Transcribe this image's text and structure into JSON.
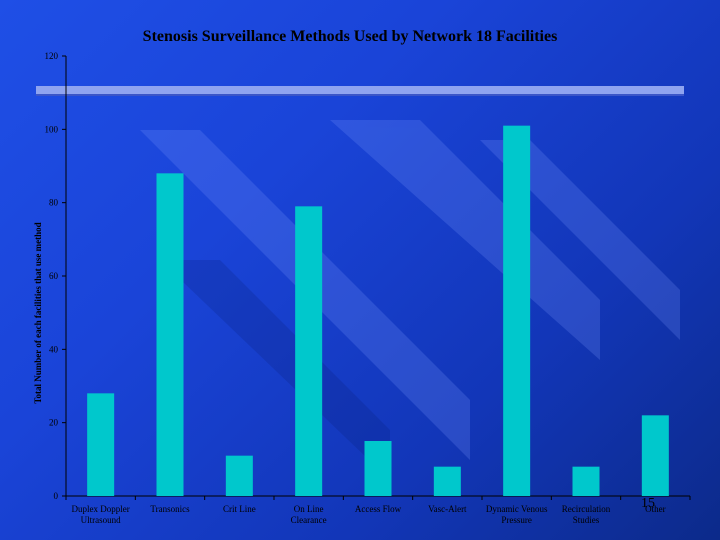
{
  "slide": {
    "title": "Stenosis Surveillance Methods Used by Network 18 Facilities",
    "slide_number": "15"
  },
  "colors": {
    "bar": "#00c8cc",
    "axis": "#000000",
    "band": "#8fa4f0"
  },
  "chart_data": {
    "type": "bar",
    "title": "Stenosis Surveillance Methods Used by Network 18 Facilities",
    "xlabel": "",
    "ylabel": "Total Number of each facilities that use method",
    "ylim": [
      0,
      120
    ],
    "yticks": [
      0,
      20,
      40,
      60,
      80,
      100,
      120
    ],
    "grid": false,
    "categories": [
      [
        "Duplex Doppler",
        "Ultrasound"
      ],
      [
        "Transonics"
      ],
      [
        "Crit Line"
      ],
      [
        "On Line",
        "Clearance"
      ],
      [
        "Access Flow"
      ],
      [
        "Vasc-Alert"
      ],
      [
        "Dynamic Venous",
        "Pressure"
      ],
      [
        "Recirculation",
        "Studies"
      ],
      [
        "Other"
      ]
    ],
    "values": [
      28,
      88,
      11,
      79,
      15,
      8,
      101,
      8,
      22
    ]
  }
}
